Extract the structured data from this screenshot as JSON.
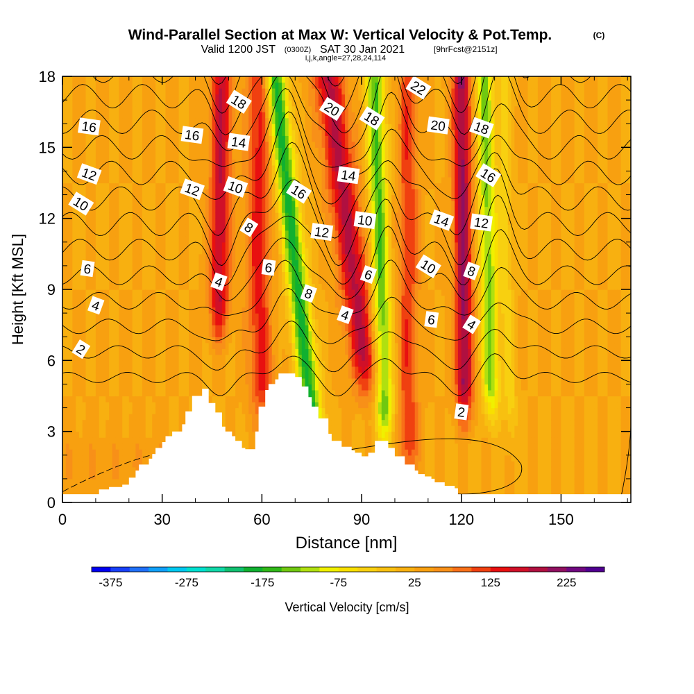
{
  "header": {
    "title_main": "Wind-Parallel Section at Max W: Vertical Velocity & Pot.Temp.",
    "title_copyright": "(C)",
    "subtitle_valid": "Valid 1200 JST",
    "subtitle_zulu": "(0300Z)",
    "subtitle_date": "SAT 30 Jan 2021",
    "subtitle_fcst": "[9hrFcst@2151z]",
    "subtitle_params": "i,j,k,angle=27,28,24,114"
  },
  "chart_data": {
    "type": "heatmap",
    "xlabel": "Distance [nm]",
    "ylabel": "Height [Kft MSL]",
    "xlim": [
      0,
      171
    ],
    "ylim": [
      0,
      18
    ],
    "x_ticks": [
      "0",
      "30",
      "60",
      "90",
      "120",
      "150"
    ],
    "y_ticks": [
      "0",
      "3",
      "6",
      "9",
      "12",
      "15",
      "18"
    ],
    "colorbar": {
      "label": "Vertical Velocity [cm/s]",
      "tick_labels": [
        "-375",
        "-275",
        "-175",
        "-75",
        "25",
        "125",
        "225"
      ],
      "range": [
        -400,
        275
      ],
      "step": 25,
      "colors": [
        "#0000f0",
        "#1840f8",
        "#2070f8",
        "#10a0f8",
        "#00c8f0",
        "#00e0d0",
        "#10d8a8",
        "#10c070",
        "#10b030",
        "#30b818",
        "#70c810",
        "#b0e010",
        "#f0f000",
        "#f8e000",
        "#f8d010",
        "#f8c010",
        "#f8b010",
        "#f8a010",
        "#f89018",
        "#f87018",
        "#f04010",
        "#e81010",
        "#d01028",
        "#b01040",
        "#901060",
        "#700880",
        "#500090"
      ]
    },
    "terrain": {
      "name": "terrain",
      "x": [
        0,
        10,
        11,
        14,
        18,
        20,
        22,
        23,
        26,
        27,
        28,
        30,
        31,
        33,
        36,
        37,
        39,
        42,
        44,
        46,
        48,
        49,
        51,
        52,
        54,
        55,
        58,
        59,
        61,
        62,
        64,
        65,
        70,
        72,
        74,
        75,
        77,
        80,
        81,
        84,
        87,
        88,
        90,
        92,
        94,
        96,
        98,
        100,
        103,
        106,
        107,
        109,
        111,
        112,
        115,
        118,
        119,
        122,
        171
      ],
      "height": [
        0.35,
        0.35,
        0.55,
        0.65,
        0.75,
        1.05,
        1.35,
        1.6,
        1.85,
        2.05,
        2.3,
        2.55,
        2.8,
        3.0,
        3.3,
        3.85,
        4.5,
        4.8,
        4.2,
        3.8,
        3.2,
        3.0,
        2.8,
        2.6,
        2.3,
        2.25,
        3.0,
        4.05,
        4.75,
        5.0,
        5.2,
        5.45,
        5.3,
        4.9,
        4.45,
        4.05,
        3.55,
        2.9,
        2.6,
        2.35,
        2.2,
        2.1,
        1.95,
        2.1,
        2.6,
        2.6,
        2.3,
        1.95,
        1.6,
        1.35,
        1.2,
        1.1,
        1.0,
        0.85,
        0.7,
        0.6,
        0.35,
        0.35,
        0.35
      ]
    },
    "w_field": {
      "name": "Vertical Velocity",
      "units": "cm/s",
      "background": 25,
      "features": [
        {
          "x_top": 48,
          "x_bottom": 47,
          "width": 3.0,
          "value": 150,
          "z_bottom": 7.5,
          "z_top": 18
        },
        {
          "x_top": 64,
          "x_bottom": 76,
          "width": 3.2,
          "value": -210,
          "z_bottom": 2.5,
          "z_top": 18
        },
        {
          "x_top": 80,
          "x_bottom": 92,
          "width": 4.5,
          "value": 155,
          "z_bottom": 5,
          "z_top": 18
        },
        {
          "x_top": 94,
          "x_bottom": 97,
          "width": 2.8,
          "value": -180,
          "z_bottom": 3,
          "z_top": 18
        },
        {
          "x_top": 120,
          "x_bottom": 121,
          "width": 2.6,
          "value": 185,
          "z_bottom": 4,
          "z_top": 18
        },
        {
          "x_top": 127,
          "x_bottom": 129,
          "width": 2.6,
          "value": -160,
          "z_bottom": 4,
          "z_top": 18
        },
        {
          "x_top": 133,
          "x_bottom": 135,
          "width": 2.0,
          "value": -60,
          "z_bottom": 3,
          "z_top": 12
        },
        {
          "x_top": 59,
          "x_bottom": 60,
          "width": 3.5,
          "value": 110,
          "z_bottom": 4,
          "z_top": 9
        },
        {
          "x_top": 104,
          "x_bottom": 104,
          "width": 3.0,
          "value": 95,
          "z_bottom": 1.5,
          "z_top": 8
        }
      ]
    },
    "theta_contour_values": [
      2,
      4,
      6,
      8,
      10,
      12,
      14,
      16,
      18,
      20,
      22
    ],
    "theta_label_anchors": [
      {
        "label": "16",
        "x": 8,
        "z": 15.85
      },
      {
        "label": "12",
        "x": 8,
        "z": 13.85
      },
      {
        "label": "10",
        "x": 5.5,
        "z": 12.6
      },
      {
        "label": "6",
        "x": 7.5,
        "z": 9.85
      },
      {
        "label": "4",
        "x": 10,
        "z": 8.3
      },
      {
        "label": "2",
        "x": 5.5,
        "z": 6.45
      },
      {
        "label": "16",
        "x": 39,
        "z": 15.5
      },
      {
        "label": "12",
        "x": 39,
        "z": 13.2
      },
      {
        "label": "18",
        "x": 53,
        "z": 16.9
      },
      {
        "label": "14",
        "x": 53,
        "z": 15.2
      },
      {
        "label": "10",
        "x": 52,
        "z": 13.3
      },
      {
        "label": "8",
        "x": 56,
        "z": 11.6
      },
      {
        "label": "6",
        "x": 62,
        "z": 9.9
      },
      {
        "label": "4",
        "x": 47,
        "z": 9.3
      },
      {
        "label": "16",
        "x": 71,
        "z": 13.1
      },
      {
        "label": "12",
        "x": 78,
        "z": 11.4
      },
      {
        "label": "8",
        "x": 74,
        "z": 8.8
      },
      {
        "label": "20",
        "x": 81,
        "z": 16.6
      },
      {
        "label": "14",
        "x": 86,
        "z": 13.8
      },
      {
        "label": "4",
        "x": 85,
        "z": 7.9
      },
      {
        "label": "18",
        "x": 93,
        "z": 16.2
      },
      {
        "label": "10",
        "x": 91,
        "z": 11.9
      },
      {
        "label": "6",
        "x": 92,
        "z": 9.6
      },
      {
        "label": "22",
        "x": 107,
        "z": 17.5
      },
      {
        "label": "20",
        "x": 113,
        "z": 15.9
      },
      {
        "label": "14",
        "x": 114,
        "z": 11.9
      },
      {
        "label": "10",
        "x": 110,
        "z": 9.95
      },
      {
        "label": "6",
        "x": 111,
        "z": 7.7
      },
      {
        "label": "18",
        "x": 126,
        "z": 15.8
      },
      {
        "label": "16",
        "x": 128,
        "z": 13.8
      },
      {
        "label": "12",
        "x": 126,
        "z": 11.8
      },
      {
        "label": "8",
        "x": 123,
        "z": 9.75
      },
      {
        "label": "4",
        "x": 123,
        "z": 7.5
      },
      {
        "label": "2",
        "x": 120,
        "z": 3.8
      }
    ]
  }
}
